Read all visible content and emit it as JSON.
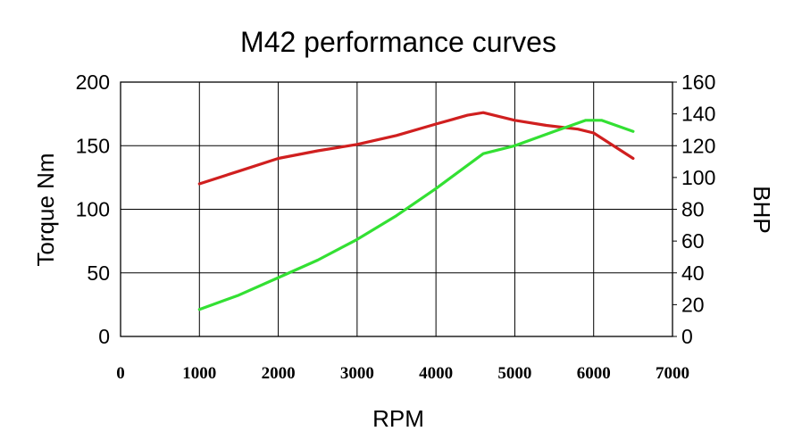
{
  "chart_data": {
    "type": "line",
    "title": "M42 performance curves",
    "xlabel": "RPM",
    "ylabel": "Torque Nm",
    "y2label": "BHP",
    "xlim": [
      0,
      7000
    ],
    "ylim": [
      0,
      200
    ],
    "y2lim": [
      0,
      160
    ],
    "x_ticks": [
      "0",
      "1000",
      "2000",
      "3000",
      "4000",
      "5000",
      "6000",
      "7000"
    ],
    "y_ticks": [
      "0",
      "50",
      "100",
      "150",
      "200"
    ],
    "y2_ticks": [
      "0",
      "20",
      "40",
      "60",
      "80",
      "100",
      "120",
      "140",
      "160"
    ],
    "grid": true,
    "legend": "none",
    "series": [
      {
        "axis": "left",
        "color": "#d01f1f",
        "points": [
          [
            1000,
            120
          ],
          [
            1500,
            130
          ],
          [
            2000,
            140
          ],
          [
            2500,
            146
          ],
          [
            3000,
            151
          ],
          [
            3500,
            158
          ],
          [
            4000,
            167
          ],
          [
            4400,
            174
          ],
          [
            4600,
            176
          ],
          [
            5000,
            170
          ],
          [
            5400,
            166
          ],
          [
            5800,
            163
          ],
          [
            6000,
            160
          ],
          [
            6500,
            140
          ]
        ]
      },
      {
        "axis": "right",
        "color": "#33e033",
        "points": [
          [
            1000,
            17
          ],
          [
            1500,
            26
          ],
          [
            2000,
            37
          ],
          [
            2500,
            48
          ],
          [
            3000,
            61
          ],
          [
            3500,
            76
          ],
          [
            4000,
            93
          ],
          [
            4600,
            115
          ],
          [
            5000,
            120
          ],
          [
            5500,
            129
          ],
          [
            5900,
            136
          ],
          [
            6100,
            136
          ],
          [
            6500,
            129
          ]
        ]
      }
    ]
  }
}
